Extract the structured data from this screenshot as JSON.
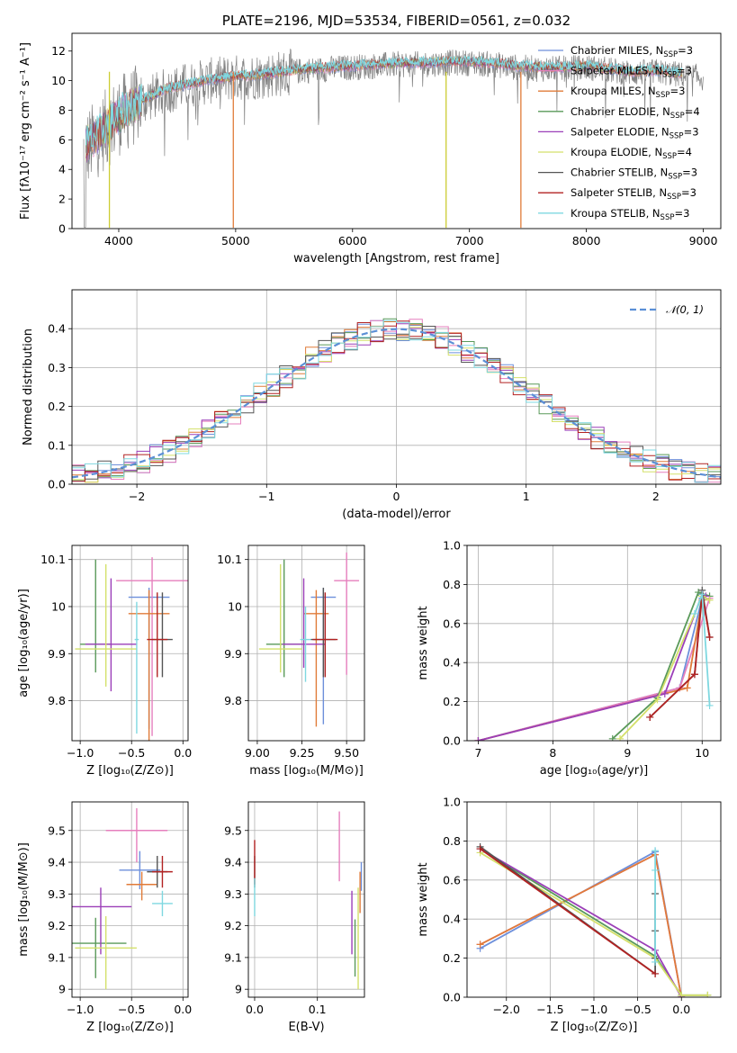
{
  "chart_data": [
    {
      "id": "spectrum",
      "type": "line",
      "title": "PLATE=2196, MJD=53534, FIBERID=0561, z=0.032",
      "xlabel": "wavelength [Angstrom, rest frame]",
      "ylabel": "Flux [fλ10⁻¹⁷ erg cm⁻² s⁻¹ A⁻¹]",
      "xlim": [
        3600,
        9150
      ],
      "ylim": [
        0,
        13.2
      ],
      "xticks": [
        4000,
        5000,
        6000,
        7000,
        8000,
        9000
      ],
      "yticks": [
        0,
        2,
        4,
        6,
        8,
        10,
        12
      ],
      "grid": false,
      "legend_position": "top-right",
      "data_x": [
        3700,
        3800,
        3900,
        4000,
        4200,
        4400,
        4600,
        4800,
        5000,
        5200,
        5400,
        5600,
        5800,
        6000,
        6200,
        6400,
        6600,
        6800,
        7000,
        7200,
        7400,
        7600,
        7800,
        8000,
        8200,
        8400,
        8600,
        8800,
        9000
      ],
      "data_y": [
        5.2,
        6.0,
        6.8,
        7.6,
        8.6,
        9.3,
        9.7,
        10.0,
        10.2,
        10.3,
        10.5,
        10.7,
        10.8,
        10.9,
        11.0,
        11.1,
        11.1,
        11.2,
        11.2,
        11.1,
        10.9,
        10.8,
        10.8,
        10.9,
        10.7,
        10.5,
        10.6,
        10.4,
        10.2
      ],
      "model_y": [
        5.5,
        6.2,
        6.9,
        7.7,
        8.7,
        9.4,
        9.8,
        10.1,
        10.3,
        10.4,
        10.6,
        10.8,
        10.9,
        11.0,
        11.1,
        11.2,
        11.2,
        11.3,
        11.3,
        11.2,
        11.0,
        10.9,
        10.9,
        11.0,
        10.8,
        10.6,
        10.7,
        10.5,
        10.3
      ],
      "gaps": [
        {
          "x": 4980,
          "color": "#e07b39"
        },
        {
          "x": 6800,
          "color": "#cccc33"
        },
        {
          "x": 7440,
          "color": "#e07b39"
        },
        {
          "x": 3920,
          "color": "#cccc33"
        }
      ],
      "series": [
        {
          "name": "Chabrier MILES, N",
          "sub": "SSP",
          "suffix": "=3",
          "color": "#6d8fdb"
        },
        {
          "name": "Salpeter MILES, N",
          "sub": "SSP",
          "suffix": "=3",
          "color": "#e67fbd"
        },
        {
          "name": "Kroupa MILES, N",
          "sub": "SSP",
          "suffix": "=3",
          "color": "#e07b39"
        },
        {
          "name": "Chabrier ELODIE, N",
          "sub": "SSP",
          "suffix": "=4",
          "color": "#5a9a5a"
        },
        {
          "name": "Salpeter ELODIE, N",
          "sub": "SSP",
          "suffix": "=3",
          "color": "#9b3fb8"
        },
        {
          "name": "Kroupa ELODIE, N",
          "sub": "SSP",
          "suffix": "=4",
          "color": "#d4e06a"
        },
        {
          "name": "Chabrier STELIB, N",
          "sub": "SSP",
          "suffix": "=3",
          "color": "#555555"
        },
        {
          "name": "Salpeter STELIB, N",
          "sub": "SSP",
          "suffix": "=3",
          "color": "#b22222"
        },
        {
          "name": "Kroupa STELIB, N",
          "sub": "SSP",
          "suffix": "=3",
          "color": "#7fd8e0"
        }
      ]
    },
    {
      "id": "residuals",
      "type": "line",
      "xlabel": "(data-model)/error",
      "ylabel": "Normed distribution",
      "xlim": [
        -2.5,
        2.5
      ],
      "ylim": [
        0,
        0.5
      ],
      "xticks": [
        -2,
        -1,
        0,
        1,
        2
      ],
      "yticks": [
        0.0,
        0.1,
        0.2,
        0.3,
        0.4
      ],
      "grid": true,
      "legend_position": "top-right",
      "legend_label": "𝒩(0, 1)",
      "gauss_color": "#5b8fd6"
    },
    {
      "id": "age-vs-Z",
      "type": "scatter",
      "xlabel": "Z [log₁₀(Z/Z⊙)]",
      "ylabel": "age  [log₁₀(age/yr)]",
      "xlim": [
        -1.08,
        0.05
      ],
      "ylim": [
        9.715,
        10.13
      ],
      "xticks": [
        -1.0,
        -0.5,
        0.0
      ],
      "yticks": [
        9.8,
        9.9,
        10.0,
        10.1
      ],
      "grid": true,
      "points": [
        {
          "x": -0.33,
          "y": 10.02,
          "xerr": 0.2,
          "yerr": [
            0.28,
            0.02
          ],
          "color": "#6d8fdb"
        },
        {
          "x": -0.3,
          "y": 10.055,
          "xerr": 0.35,
          "yerr": [
            0.33,
            0.05
          ],
          "color": "#e67fbd"
        },
        {
          "x": -0.33,
          "y": 9.985,
          "xerr": 0.2,
          "yerr": [
            0.27,
            0.05
          ],
          "color": "#e07b39"
        },
        {
          "x": -0.85,
          "y": 9.92,
          "xerr": 0.15,
          "yerr": [
            0.06,
            0.18
          ],
          "color": "#5a9a5a"
        },
        {
          "x": -0.7,
          "y": 9.92,
          "xerr": 0.25,
          "yerr": [
            0.1,
            0.14
          ],
          "color": "#9b3fb8"
        },
        {
          "x": -0.75,
          "y": 9.91,
          "xerr": 0.3,
          "yerr": [
            0.08,
            0.18
          ],
          "color": "#d4e06a"
        },
        {
          "x": -0.2,
          "y": 9.93,
          "xerr": 0.1,
          "yerr": [
            0.08,
            0.1
          ],
          "color": "#555555"
        },
        {
          "x": -0.25,
          "y": 9.93,
          "xerr": 0.1,
          "yerr": [
            0.08,
            0.1
          ],
          "color": "#b22222"
        },
        {
          "x": -0.45,
          "y": 9.93,
          "xerr": 0.02,
          "yerr": [
            0.2,
            0.08
          ],
          "color": "#7fd8e0"
        }
      ]
    },
    {
      "id": "age-vs-mass",
      "type": "scatter",
      "xlabel": "mass [log₁₀(M/M⊙)]",
      "ylabel": "",
      "xlim": [
        8.95,
        9.6
      ],
      "ylim": [
        9.715,
        10.13
      ],
      "xticks": [
        9.0,
        9.25,
        9.5
      ],
      "yticks": [
        9.8,
        9.9,
        10.0,
        10.1
      ],
      "grid": true,
      "points": [
        {
          "x": 9.37,
          "y": 10.02,
          "xerr": 0.07,
          "yerr": [
            0.27,
            0.02
          ],
          "color": "#6d8fdb"
        },
        {
          "x": 9.5,
          "y": 10.055,
          "xerr": 0.07,
          "yerr": [
            0.2,
            0.06
          ],
          "color": "#e67fbd"
        },
        {
          "x": 9.33,
          "y": 9.985,
          "xerr": 0.07,
          "yerr": [
            0.24,
            0.05
          ],
          "color": "#e07b39"
        },
        {
          "x": 9.15,
          "y": 9.92,
          "xerr": 0.1,
          "yerr": [
            0.07,
            0.18
          ],
          "color": "#5a9a5a"
        },
        {
          "x": 9.26,
          "y": 9.92,
          "xerr": 0.12,
          "yerr": [
            0.05,
            0.14
          ],
          "color": "#9b3fb8"
        },
        {
          "x": 9.13,
          "y": 9.91,
          "xerr": 0.12,
          "yerr": [
            0.05,
            0.18
          ],
          "color": "#d4e06a"
        },
        {
          "x": 9.37,
          "y": 9.93,
          "xerr": 0.07,
          "yerr": [
            0.08,
            0.11
          ],
          "color": "#555555"
        },
        {
          "x": 9.38,
          "y": 9.93,
          "xerr": 0.07,
          "yerr": [
            0.08,
            0.1
          ],
          "color": "#b22222"
        },
        {
          "x": 9.27,
          "y": 9.93,
          "xerr": 0.03,
          "yerr": [
            0.09,
            0.07
          ],
          "color": "#7fd8e0"
        }
      ]
    },
    {
      "id": "massweight-vs-age",
      "type": "line",
      "xlabel": "age  [log₁₀(age/yr)]",
      "ylabel": "mass weight",
      "xlim": [
        6.85,
        10.25
      ],
      "ylim": [
        0,
        1.0
      ],
      "xticks": [
        7,
        8,
        9,
        10
      ],
      "yticks": [
        0.0,
        0.2,
        0.4,
        0.6,
        0.8,
        1.0
      ],
      "grid": true,
      "series": [
        {
          "color": "#6d8fdb",
          "x": [
            7.0,
            9.7,
            10.0
          ],
          "y": [
            0.0,
            0.27,
            0.73
          ]
        },
        {
          "color": "#e67fbd",
          "x": [
            7.0,
            9.7,
            10.1
          ],
          "y": [
            0.0,
            0.27,
            0.73
          ]
        },
        {
          "color": "#e07b39",
          "x": [
            7.0,
            9.8,
            10.0
          ],
          "y": [
            0.0,
            0.27,
            0.72
          ]
        },
        {
          "color": "#5a9a5a",
          "x": [
            8.8,
            9.4,
            9.95,
            10.1
          ],
          "y": [
            0.01,
            0.22,
            0.76,
            0.74
          ]
        },
        {
          "color": "#9b3fb8",
          "x": [
            7.0,
            9.5,
            10.0,
            10.05
          ],
          "y": [
            0.0,
            0.24,
            0.75,
            0.74
          ]
        },
        {
          "color": "#d4e06a",
          "x": [
            8.9,
            9.4,
            10.0,
            10.1
          ],
          "y": [
            0.01,
            0.21,
            0.74,
            0.72
          ]
        },
        {
          "color": "#555555",
          "x": [
            9.3,
            9.9,
            10.0,
            10.1
          ],
          "y": [
            0.12,
            0.34,
            0.77,
            0.53
          ]
        },
        {
          "color": "#b22222",
          "x": [
            9.3,
            9.9,
            10.0,
            10.1
          ],
          "y": [
            0.12,
            0.34,
            0.75,
            0.53
          ]
        },
        {
          "color": "#7fd8e0",
          "x": [
            9.9,
            10.0,
            10.1
          ],
          "y": [
            0.65,
            0.75,
            0.18
          ]
        }
      ]
    },
    {
      "id": "mass-vs-Z",
      "type": "scatter",
      "xlabel": "Z [log₁₀(Z/Z⊙)]",
      "ylabel": "mass [log₁₀(M/M⊙)]",
      "xlim": [
        -1.08,
        0.05
      ],
      "ylim": [
        8.975,
        9.59
      ],
      "xticks": [
        -1.0,
        -0.5,
        0.0
      ],
      "yticks": [
        9.0,
        9.1,
        9.2,
        9.3,
        9.4,
        9.5
      ],
      "grid": true,
      "points": [
        {
          "x": -0.42,
          "y": 9.375,
          "xerr": 0.2,
          "yerr": [
            0.06,
            0.06
          ],
          "color": "#6d8fdb"
        },
        {
          "x": -0.45,
          "y": 9.5,
          "xerr": 0.3,
          "yerr": [
            0.1,
            0.07
          ],
          "color": "#e67fbd"
        },
        {
          "x": -0.4,
          "y": 9.33,
          "xerr": 0.15,
          "yerr": [
            0.05,
            0.04
          ],
          "color": "#e07b39"
        },
        {
          "x": -0.85,
          "y": 9.145,
          "xerr": 0.3,
          "yerr": [
            0.11,
            0.08
          ],
          "color": "#5a9a5a"
        },
        {
          "x": -0.8,
          "y": 9.26,
          "xerr": 0.3,
          "yerr": [
            0.15,
            0.06
          ],
          "color": "#9b3fb8"
        },
        {
          "x": -0.75,
          "y": 9.13,
          "xerr": 0.3,
          "yerr": [
            0.13,
            0.1
          ],
          "color": "#d4e06a"
        },
        {
          "x": -0.25,
          "y": 9.37,
          "xerr": 0.1,
          "yerr": [
            0.05,
            0.05
          ],
          "color": "#555555"
        },
        {
          "x": -0.2,
          "y": 9.37,
          "xerr": 0.1,
          "yerr": [
            0.05,
            0.05
          ],
          "color": "#b22222"
        },
        {
          "x": -0.2,
          "y": 9.27,
          "xerr": 0.1,
          "yerr": [
            0.04,
            0.04
          ],
          "color": "#7fd8e0"
        }
      ]
    },
    {
      "id": "mass-vs-EBV",
      "type": "scatter",
      "xlabel": "E(B-V)",
      "ylabel": "",
      "xlim": [
        -0.01,
        0.175
      ],
      "ylim": [
        8.975,
        9.59
      ],
      "xticks": [
        0.0,
        0.1
      ],
      "yticks": [
        9.0,
        9.1,
        9.2,
        9.3,
        9.4,
        9.5
      ],
      "grid": true,
      "points": [
        {
          "x": 0.17,
          "y": 9.37,
          "yerr": [
            0.06,
            0.03
          ],
          "color": "#6d8fdb"
        },
        {
          "x": 0.135,
          "y": 9.45,
          "yerr": [
            0.11,
            0.11
          ],
          "color": "#e67fbd"
        },
        {
          "x": 0.168,
          "y": 9.3,
          "yerr": [
            0.06,
            0.07
          ],
          "color": "#e07b39"
        },
        {
          "x": 0.16,
          "y": 9.14,
          "yerr": [
            0.1,
            0.08
          ],
          "color": "#5a9a5a"
        },
        {
          "x": 0.155,
          "y": 9.2,
          "yerr": [
            0.09,
            0.11
          ],
          "color": "#9b3fb8"
        },
        {
          "x": 0.165,
          "y": 9.2,
          "yerr": [
            0.2,
            0.12
          ],
          "color": "#d4e06a"
        },
        {
          "x": 0.0,
          "y": 9.37,
          "yerr": [
            0.05,
            0.05
          ],
          "color": "#555555"
        },
        {
          "x": 0.0,
          "y": 9.38,
          "yerr": [
            0.05,
            0.09
          ],
          "color": "#b22222"
        },
        {
          "x": 0.0,
          "y": 9.29,
          "yerr": [
            0.06,
            0.06
          ],
          "color": "#7fd8e0"
        }
      ]
    },
    {
      "id": "massweight-vs-Z",
      "type": "line",
      "xlabel": "Z [log₁₀(Z/Z⊙)]",
      "ylabel": "mass weight",
      "xlim": [
        -2.45,
        0.45
      ],
      "ylim": [
        0,
        1.0
      ],
      "xticks": [
        -2.0,
        -1.5,
        -1.0,
        -0.5,
        0.0
      ],
      "yticks": [
        0.0,
        0.2,
        0.4,
        0.6,
        0.8,
        1.0
      ],
      "grid": true,
      "series": [
        {
          "color": "#6d8fdb",
          "x": [
            -2.3,
            -0.3,
            0.0
          ],
          "y": [
            0.25,
            0.745,
            0.0
          ]
        },
        {
          "color": "#e67fbd",
          "x": [
            -2.3,
            -0.3,
            0.0
          ],
          "y": [
            0.27,
            0.73,
            0.0
          ]
        },
        {
          "color": "#e07b39",
          "x": [
            -2.3,
            -0.3,
            0.0
          ],
          "y": [
            0.27,
            0.73,
            0.0
          ]
        },
        {
          "color": "#5a9a5a",
          "x": [
            -2.3,
            -0.3,
            0.0,
            0.3
          ],
          "y": [
            0.76,
            0.21,
            0.01,
            0.01
          ]
        },
        {
          "color": "#9b3fb8",
          "x": [
            -2.3,
            -0.3,
            0.0
          ],
          "y": [
            0.76,
            0.24,
            0.0
          ]
        },
        {
          "color": "#d4e06a",
          "x": [
            -2.3,
            -0.3,
            0.0,
            0.3
          ],
          "y": [
            0.74,
            0.2,
            0.01,
            0.01
          ]
        },
        {
          "color": "#555555",
          "x": [
            -2.3,
            -0.3,
            -0.3,
            -0.3,
            -0.3
          ],
          "y": [
            0.77,
            0.12,
            0.34,
            0.53,
            0.2
          ]
        },
        {
          "color": "#b22222",
          "x": [
            -2.3,
            -0.3
          ],
          "y": [
            0.76,
            0.12
          ]
        },
        {
          "color": "#7fd8e0",
          "x": [
            -0.3,
            -0.3,
            -0.3
          ],
          "y": [
            0.18,
            0.65,
            0.75
          ]
        }
      ]
    }
  ]
}
